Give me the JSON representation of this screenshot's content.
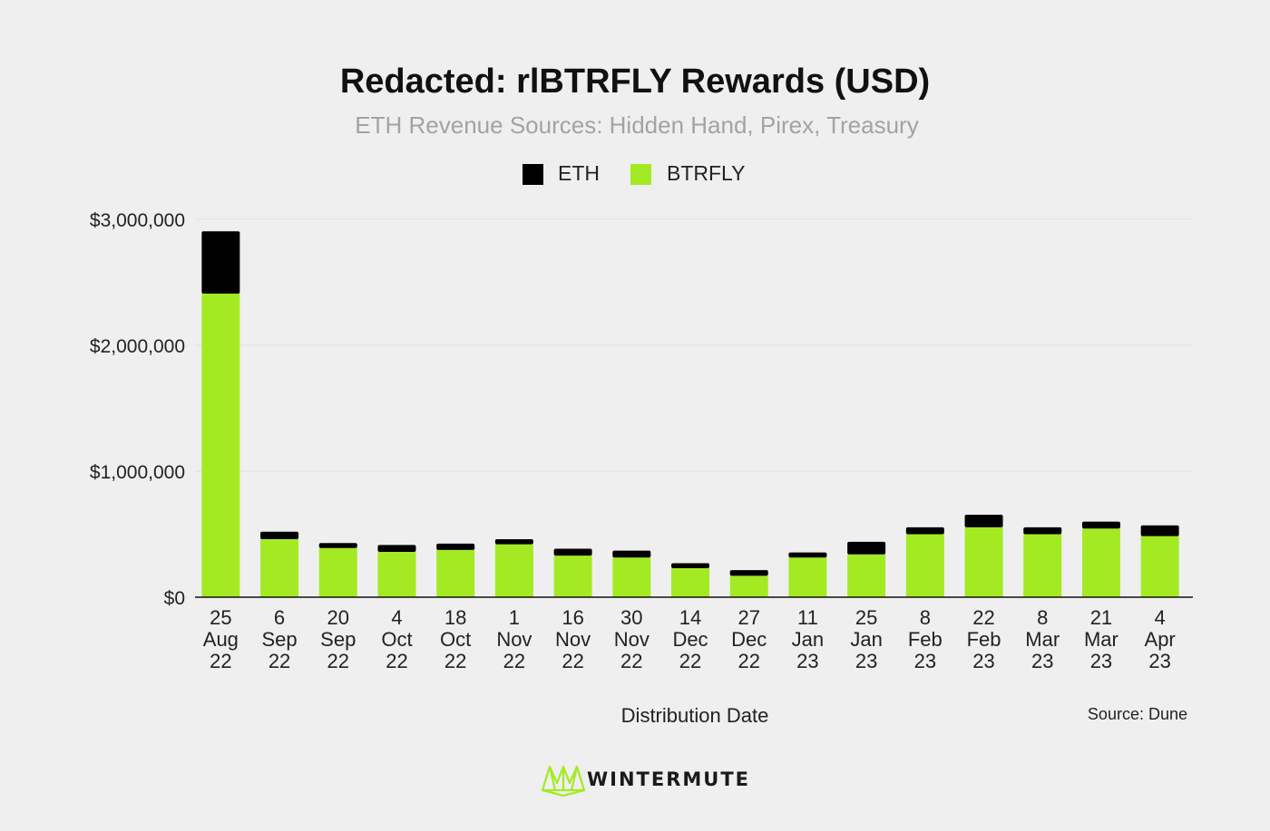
{
  "chart_data": {
    "type": "bar",
    "stacked": true,
    "title": "Redacted: rlBTRFLY Rewards (USD)",
    "subtitle": "ETH Revenue Sources: Hidden Hand, Pirex, Treasury",
    "xlabel": "Distribution Date",
    "ylabel": "",
    "ylim": [
      0,
      3000000
    ],
    "yticks": [
      0,
      1000000,
      2000000,
      3000000
    ],
    "ytick_labels": [
      "$0",
      "$1,000,000",
      "$2,000,000",
      "$3,000,000"
    ],
    "grid": "horizontal",
    "legend_position": "top-center",
    "categories": [
      [
        "25",
        "Aug",
        "22"
      ],
      [
        "6",
        "Sep",
        "22"
      ],
      [
        "20",
        "Sep",
        "22"
      ],
      [
        "4",
        "Oct",
        "22"
      ],
      [
        "18",
        "Oct",
        "22"
      ],
      [
        "1",
        "Nov",
        "22"
      ],
      [
        "16",
        "Nov",
        "22"
      ],
      [
        "30",
        "Nov",
        "22"
      ],
      [
        "14",
        "Dec",
        "22"
      ],
      [
        "27",
        "Dec",
        "22"
      ],
      [
        "11",
        "Jan",
        "23"
      ],
      [
        "25",
        "Jan",
        "23"
      ],
      [
        "8",
        "Feb",
        "23"
      ],
      [
        "22",
        "Feb",
        "23"
      ],
      [
        "8",
        "Mar",
        "23"
      ],
      [
        "21",
        "Mar",
        "23"
      ],
      [
        "4",
        "Apr",
        "23"
      ]
    ],
    "series": [
      {
        "name": "BTRFLY",
        "color": "#a4ea23",
        "values": [
          2410000,
          460000,
          390000,
          360000,
          375000,
          420000,
          330000,
          315000,
          230000,
          170000,
          315000,
          340000,
          500000,
          555000,
          500000,
          545000,
          485000
        ]
      },
      {
        "name": "ETH",
        "color": "#000000",
        "values": [
          495000,
          60000,
          40000,
          55000,
          50000,
          40000,
          55000,
          55000,
          40000,
          45000,
          40000,
          100000,
          55000,
          100000,
          55000,
          55000,
          85000
        ]
      }
    ],
    "legend_order": [
      "ETH",
      "BTRFLY"
    ],
    "source": "Source: Dune"
  },
  "brand": {
    "name": "WINTERMUTE",
    "logo_icon": "wintermute-logo-icon",
    "color": "#a4ea23"
  }
}
